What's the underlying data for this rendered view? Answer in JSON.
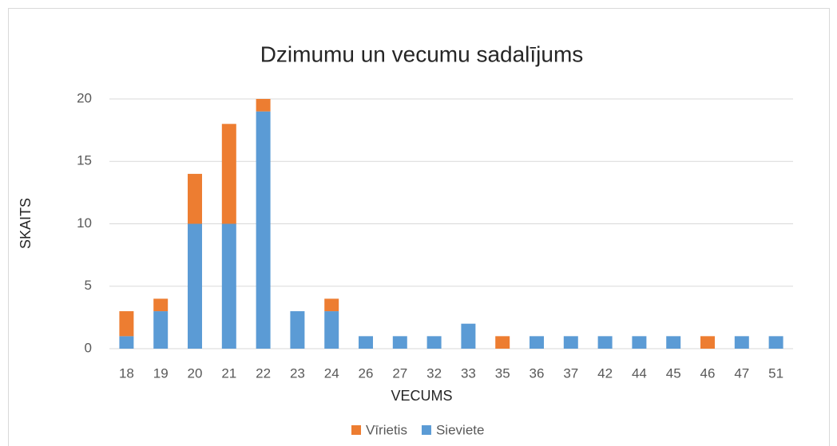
{
  "chart_data": {
    "type": "stacked_bar",
    "title": "Dzimumu un vecumu sadalījums",
    "x_label": "VECUMS",
    "y_label": "SKAITS",
    "categories": [
      "18",
      "19",
      "20",
      "21",
      "22",
      "23",
      "24",
      "26",
      "27",
      "32",
      "33",
      "35",
      "36",
      "37",
      "42",
      "44",
      "45",
      "46",
      "47",
      "51"
    ],
    "series": [
      {
        "name": "Sieviete",
        "color": "#5b9bd5",
        "values": [
          1,
          3,
          10,
          10,
          19,
          3,
          3,
          1,
          1,
          1,
          2,
          0,
          1,
          1,
          1,
          1,
          1,
          0,
          1,
          1
        ]
      },
      {
        "name": "Vīrietis",
        "color": "#ed7d31",
        "values": [
          2,
          1,
          4,
          8,
          1,
          0,
          1,
          0,
          0,
          0,
          0,
          1,
          0,
          0,
          0,
          0,
          0,
          1,
          0,
          0
        ]
      }
    ],
    "ylim": [
      0,
      20
    ],
    "yticks": [
      0,
      5,
      10,
      15,
      20
    ],
    "grid": true,
    "legend": "bottom"
  }
}
